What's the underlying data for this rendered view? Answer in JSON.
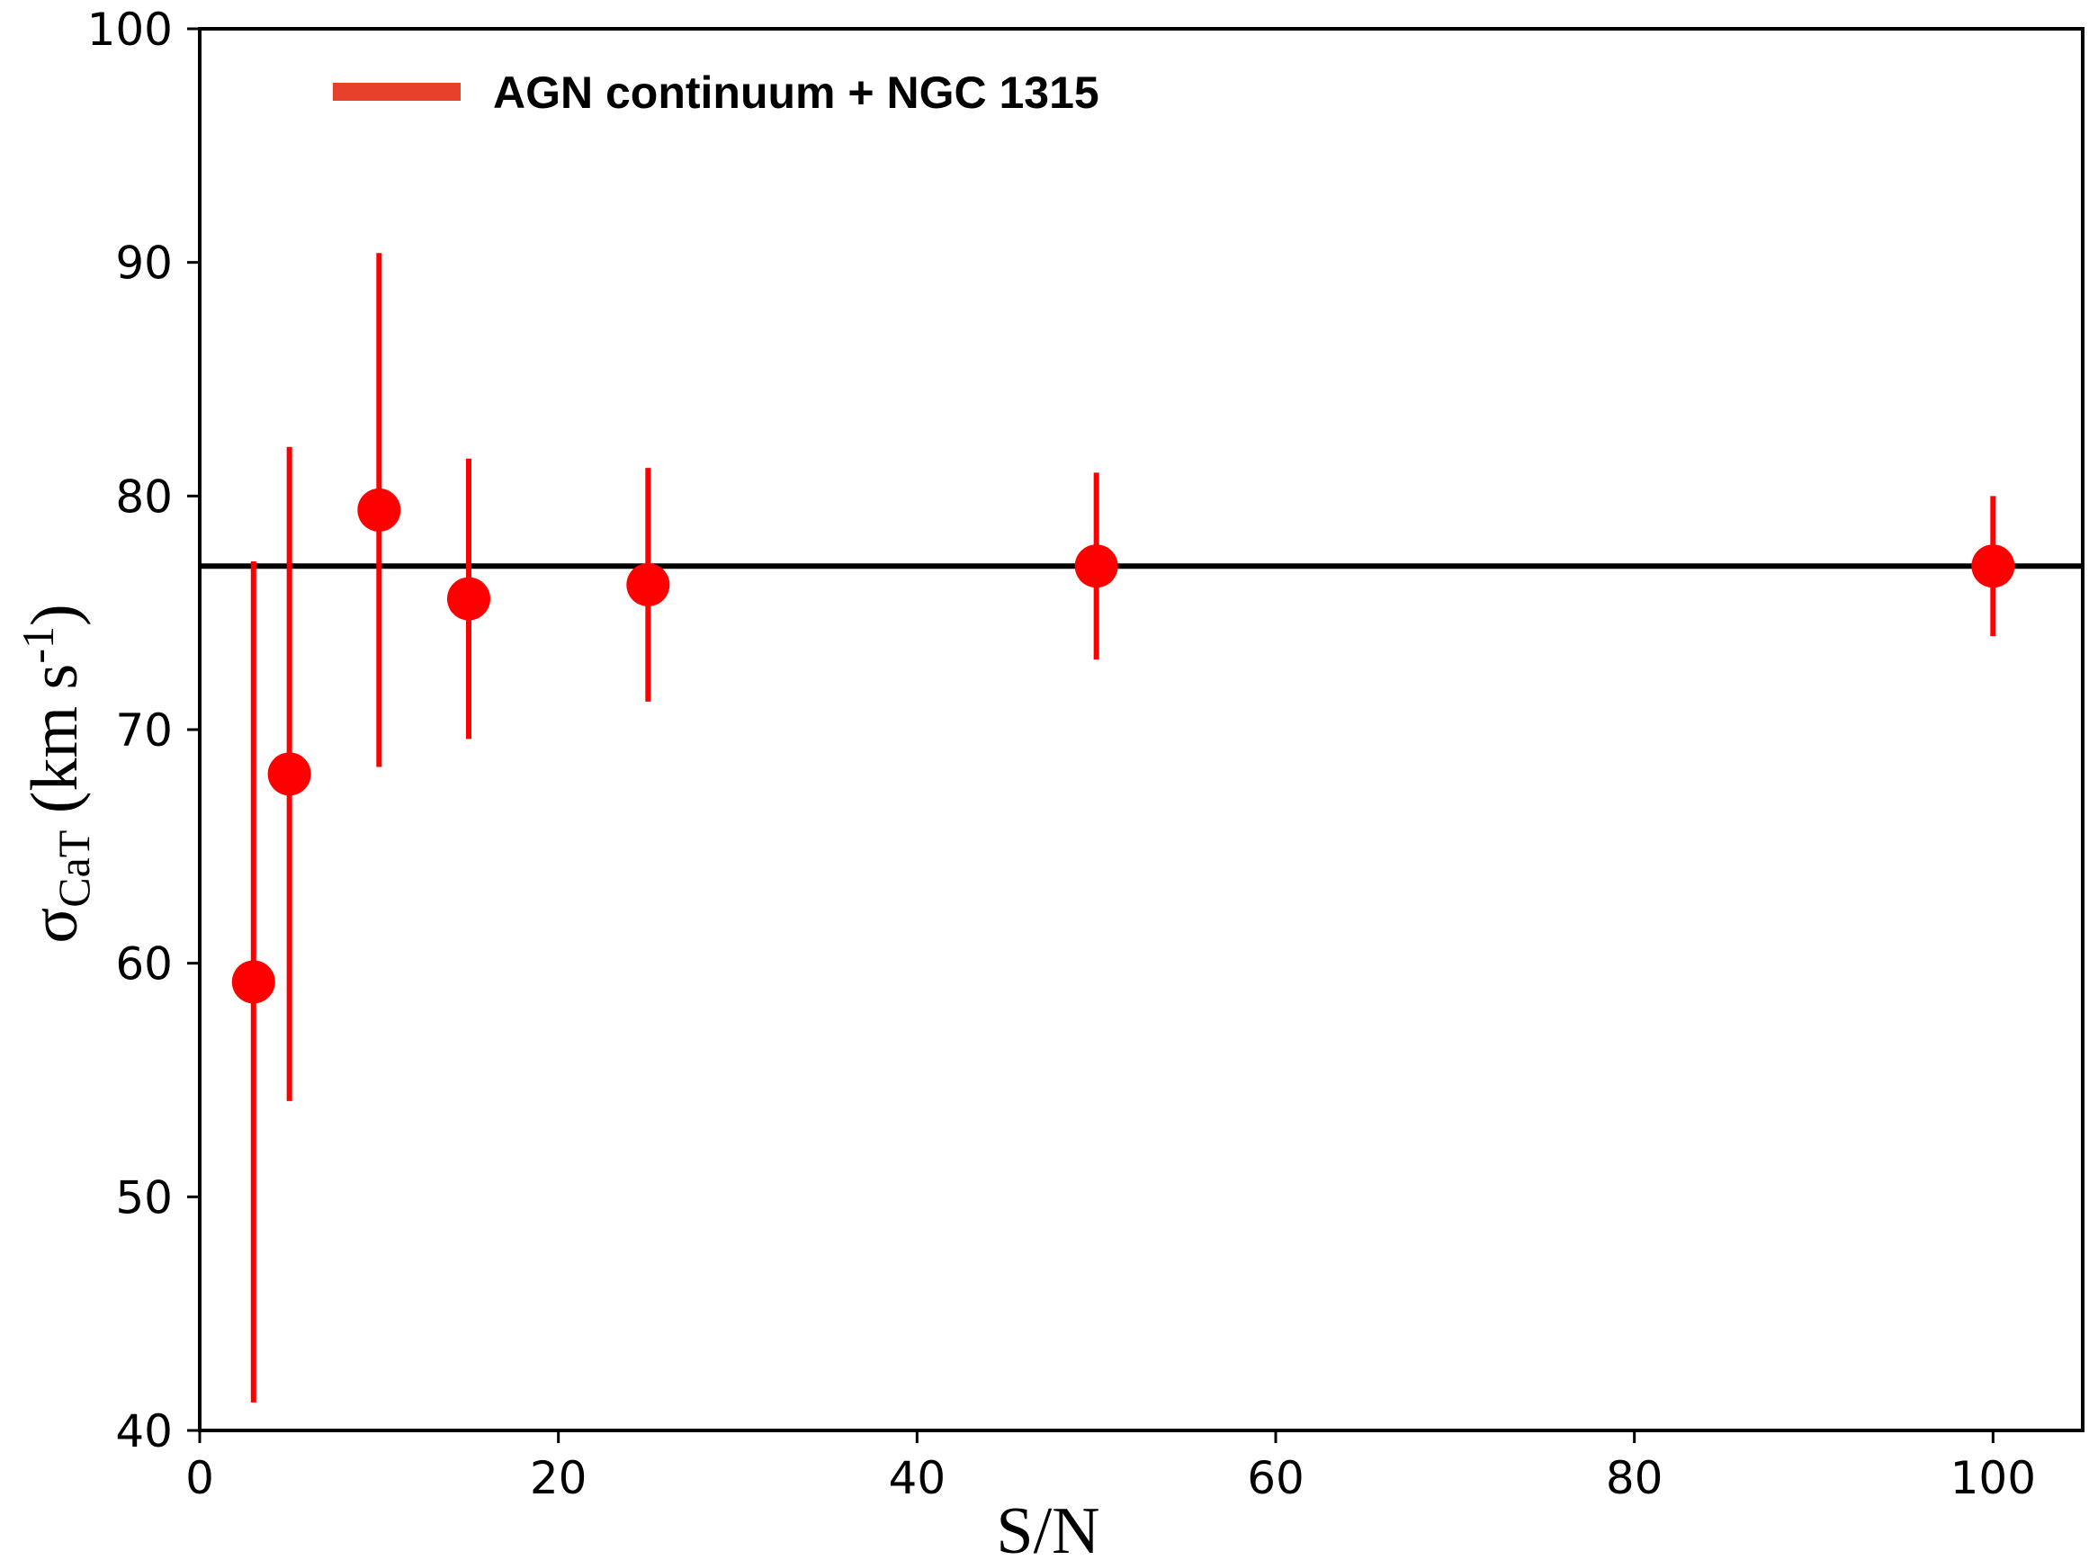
{
  "chart_data": {
    "type": "scatter",
    "xlabel": "S/N",
    "ylabel": {
      "main": "σ",
      "sub": "CaT",
      "unit_open": " (km s",
      "unit_sup": "-1",
      "unit_close": ")"
    },
    "xlim": [
      0,
      105
    ],
    "ylim": [
      40,
      100
    ],
    "xticks": [
      0,
      20,
      40,
      60,
      80,
      100
    ],
    "yticks": [
      40,
      50,
      60,
      70,
      80,
      90,
      100
    ],
    "grid": false,
    "legend_position": "top-left",
    "series": [
      {
        "name": "AGN continuum + NGC 1315",
        "color": "#ff0000",
        "legend_color": "#e8412b",
        "marker": "circle",
        "points": [
          {
            "x": 3,
            "y": 59.2,
            "err_low": 41.2,
            "err_high": 77.2
          },
          {
            "x": 5,
            "y": 68.1,
            "err_low": 54.1,
            "err_high": 82.1
          },
          {
            "x": 10,
            "y": 79.4,
            "err_low": 68.4,
            "err_high": 90.4
          },
          {
            "x": 15,
            "y": 75.6,
            "err_low": 69.6,
            "err_high": 81.6
          },
          {
            "x": 25,
            "y": 76.2,
            "err_low": 71.2,
            "err_high": 81.2
          },
          {
            "x": 50,
            "y": 77.0,
            "err_low": 73.0,
            "err_high": 81.0
          },
          {
            "x": 100,
            "y": 77.0,
            "err_low": 74.0,
            "err_high": 80.0
          }
        ]
      }
    ],
    "reference_line": {
      "y": 77.0,
      "color": "#000000"
    }
  }
}
